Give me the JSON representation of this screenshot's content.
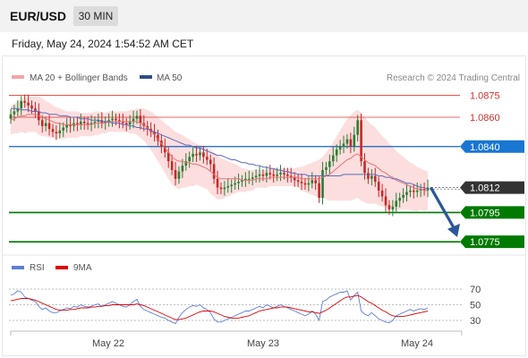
{
  "header": {
    "pair": "EUR/USD",
    "timeframe": "30 MIN",
    "datetime": "Friday, May 24, 2024 1:54:52 AM CET"
  },
  "legend": {
    "bollinger_label": "MA 20 + Bollinger Bands",
    "ma50_label": "MA 50",
    "credit": "Research © 2024 Trading Central",
    "rsi_label": "RSI",
    "rsi_ma_label": "9MA"
  },
  "colors": {
    "up": "#2e7d32",
    "down": "#c62828",
    "band_fill": "#fbd3d3",
    "ma20": "#e57373",
    "ma50": "#5c6bc0",
    "pivot_line": "#1565c0",
    "pivot_tag": "#1976d2",
    "resistance": "#e53935",
    "support": "#007a00",
    "current_tag": "#333333",
    "arrow": "#2b579a",
    "rsi": "#5b7fd6",
    "rsi_ma": "#e00000"
  },
  "chart_data": [
    {
      "type": "candlestick",
      "ylim": [
        1.0769,
        1.0882
      ],
      "x_ticks": [
        "May 22",
        "May 23",
        "May 24"
      ],
      "levels": [
        {
          "price": 1.0875,
          "label": "1.0875",
          "kind": "resistance"
        },
        {
          "price": 1.086,
          "label": "1.0860",
          "kind": "resistance"
        },
        {
          "price": 1.084,
          "label": "1.0840",
          "kind": "pivot"
        },
        {
          "price": 1.0812,
          "label": "1.0812",
          "kind": "current"
        },
        {
          "price": 1.0795,
          "label": "1.0795",
          "kind": "support"
        },
        {
          "price": 1.0775,
          "label": "1.0775",
          "kind": "support"
        }
      ],
      "projection": {
        "from": 1.0812,
        "to": 1.0777
      },
      "closes": [
        1.0862,
        1.0864,
        1.0866,
        1.0871,
        1.087,
        1.0868,
        1.0866,
        1.0864,
        1.0858,
        1.0854,
        1.0856,
        1.0852,
        1.085,
        1.0849,
        1.0851,
        1.0853,
        1.0855,
        1.0854,
        1.0856,
        1.0855,
        1.0857,
        1.0856,
        1.0855,
        1.0856,
        1.0857,
        1.0858,
        1.0856,
        1.0857,
        1.0858,
        1.0859,
        1.0858,
        1.0857,
        1.0856,
        1.0855,
        1.0857,
        1.0859,
        1.0861,
        1.0856,
        1.0854,
        1.0852,
        1.085,
        1.0848,
        1.0844,
        1.084,
        1.0836,
        1.083,
        1.0824,
        1.0818,
        1.0823,
        1.0827,
        1.083,
        1.0833,
        1.0835,
        1.0834,
        1.0836,
        1.0833,
        1.0831,
        1.0828,
        1.0818,
        1.0812,
        1.0811,
        1.0812,
        1.0813,
        1.0814,
        1.0815,
        1.0816,
        1.0817,
        1.0818,
        1.0818,
        1.0819,
        1.082,
        1.0821,
        1.082,
        1.0822,
        1.0821,
        1.082,
        1.0821,
        1.0822,
        1.0821,
        1.082,
        1.0819,
        1.0817,
        1.0816,
        1.0815,
        1.0814,
        1.0815,
        1.0817,
        1.0815,
        1.0805,
        1.0824,
        1.0826,
        1.083,
        1.0834,
        1.0838,
        1.084,
        1.0842,
        1.0845,
        1.084,
        1.0848,
        1.0858,
        1.083,
        1.0822,
        1.0818,
        1.082,
        1.0816,
        1.081,
        1.0806,
        1.08,
        1.0797,
        1.0799,
        1.0803,
        1.0805,
        1.0807,
        1.0809,
        1.081,
        1.0809,
        1.081,
        1.0811,
        1.081,
        1.0812
      ],
      "ma20": [
        1.0858,
        1.0859,
        1.086,
        1.0861,
        1.0861,
        1.0862,
        1.0862,
        1.0862,
        1.0861,
        1.086,
        1.0859,
        1.0858,
        1.0857,
        1.0856,
        1.0856,
        1.0855,
        1.0855,
        1.0855,
        1.0855,
        1.0855,
        1.0855,
        1.0855,
        1.0855,
        1.0855,
        1.0856,
        1.0856,
        1.0856,
        1.0856,
        1.0857,
        1.0857,
        1.0857,
        1.0857,
        1.0857,
        1.0857,
        1.0857,
        1.0857,
        1.0857,
        1.0856,
        1.0855,
        1.0853,
        1.0851,
        1.0848,
        1.0845,
        1.0842,
        1.0839,
        1.0836,
        1.0833,
        1.0831,
        1.083,
        1.083,
        1.0829,
        1.0829,
        1.0828,
        1.0828,
        1.0827,
        1.0826,
        1.0825,
        1.0823,
        1.0821,
        1.0819,
        1.0818,
        1.0818,
        1.0818,
        1.0818,
        1.0818,
        1.0818,
        1.0817,
        1.0817,
        1.0817,
        1.0817,
        1.0818,
        1.0818,
        1.0818,
        1.0818,
        1.0819,
        1.0819,
        1.0819,
        1.0819,
        1.0819,
        1.0819,
        1.0819,
        1.0819,
        1.0819,
        1.0818,
        1.0818,
        1.0818,
        1.0818,
        1.0818,
        1.0818,
        1.0819,
        1.082,
        1.0821,
        1.0823,
        1.0825,
        1.0827,
        1.0829,
        1.0831,
        1.0832,
        1.0834,
        1.0835,
        1.0833,
        1.0831,
        1.0829,
        1.0828,
        1.0827,
        1.0825,
        1.0823,
        1.0822,
        1.082,
        1.0819,
        1.0817,
        1.0816,
        1.0815,
        1.0814,
        1.0813,
        1.0812,
        1.0811,
        1.0811,
        1.081,
        1.081
      ],
      "ma50": [
        1.0866,
        1.0866,
        1.0866,
        1.0865,
        1.0865,
        1.0865,
        1.0864,
        1.0864,
        1.0864,
        1.0863,
        1.0863,
        1.0862,
        1.0862,
        1.0862,
        1.0861,
        1.0861,
        1.0861,
        1.086,
        1.086,
        1.086,
        1.0859,
        1.0859,
        1.0859,
        1.0858,
        1.0858,
        1.0858,
        1.0857,
        1.0857,
        1.0857,
        1.0856,
        1.0856,
        1.0856,
        1.0855,
        1.0855,
        1.0854,
        1.0854,
        1.0853,
        1.0853,
        1.0852,
        1.0852,
        1.0851,
        1.085,
        1.0849,
        1.0848,
        1.0847,
        1.0846,
        1.0845,
        1.0844,
        1.0843,
        1.0842,
        1.0841,
        1.0841,
        1.084,
        1.0839,
        1.0839,
        1.0838,
        1.0837,
        1.0836,
        1.0835,
        1.0834,
        1.0834,
        1.0833,
        1.0832,
        1.0831,
        1.0831,
        1.083,
        1.0829,
        1.0829,
        1.0828,
        1.0828,
        1.0827,
        1.0827,
        1.0826,
        1.0826,
        1.0825,
        1.0825,
        1.0824,
        1.0824,
        1.0823,
        1.0823,
        1.0822,
        1.0822,
        1.0821,
        1.0821,
        1.0821,
        1.082,
        1.082,
        1.082,
        1.082,
        1.082,
        1.082,
        1.082,
        1.082,
        1.082,
        1.082,
        1.0821,
        1.0821,
        1.0821,
        1.0821,
        1.0821,
        1.0821,
        1.0821,
        1.0821,
        1.0821,
        1.0821,
        1.082,
        1.082,
        1.0819,
        1.0819,
        1.0818,
        1.0818,
        1.0817,
        1.0816,
        1.0815,
        1.0815,
        1.0814,
        1.0813,
        1.0812,
        1.0812,
        1.0811
      ],
      "band_width": [
        0.001,
        0.001,
        0.0011,
        0.0011,
        0.0012,
        0.0012,
        0.0012,
        0.0012,
        0.0013,
        0.0013,
        0.0012,
        0.0012,
        0.0011,
        0.0011,
        0.001,
        0.001,
        0.0009,
        0.0009,
        0.0009,
        0.0009,
        0.0008,
        0.0008,
        0.0008,
        0.0008,
        0.0008,
        0.0008,
        0.0007,
        0.0007,
        0.0007,
        0.0007,
        0.0007,
        0.0007,
        0.0007,
        0.0007,
        0.0008,
        0.0008,
        0.0009,
        0.001,
        0.0011,
        0.0012,
        0.0013,
        0.0014,
        0.0015,
        0.0016,
        0.0017,
        0.0018,
        0.0019,
        0.0019,
        0.0019,
        0.0018,
        0.0017,
        0.0016,
        0.0015,
        0.0014,
        0.0014,
        0.0014,
        0.0014,
        0.0015,
        0.0015,
        0.0015,
        0.0014,
        0.0013,
        0.0012,
        0.0011,
        0.001,
        0.0009,
        0.0008,
        0.0008,
        0.0007,
        0.0007,
        0.0006,
        0.0006,
        0.0006,
        0.0006,
        0.0006,
        0.0006,
        0.0006,
        0.0006,
        0.0006,
        0.0006,
        0.0006,
        0.0006,
        0.0007,
        0.0008,
        0.0009,
        0.001,
        0.0011,
        0.0012,
        0.0013,
        0.0014,
        0.0016,
        0.0018,
        0.002,
        0.0022,
        0.0024,
        0.0026,
        0.0028,
        0.0029,
        0.003,
        0.003,
        0.003,
        0.0029,
        0.0028,
        0.0027,
        0.0026,
        0.0025,
        0.0024,
        0.0023,
        0.0022,
        0.0021,
        0.002,
        0.0019,
        0.0018,
        0.0017,
        0.0016,
        0.0016,
        0.0015,
        0.0014,
        0.0014,
        0.0013
      ]
    },
    {
      "type": "line",
      "ylim": [
        22,
        78
      ],
      "y_ticks": [
        70,
        50,
        30
      ],
      "rsi": [
        62,
        64,
        68,
        66,
        60,
        58,
        56,
        54,
        48,
        44,
        46,
        42,
        40,
        40,
        42,
        44,
        46,
        45,
        48,
        47,
        50,
        48,
        47,
        48,
        50,
        51,
        48,
        50,
        52,
        54,
        52,
        50,
        48,
        47,
        50,
        54,
        57,
        48,
        44,
        42,
        40,
        38,
        36,
        34,
        33,
        30,
        28,
        26,
        34,
        40,
        44,
        47,
        49,
        48,
        50,
        46,
        44,
        40,
        32,
        28,
        28,
        30,
        32,
        34,
        36,
        38,
        40,
        42,
        42,
        44,
        46,
        48,
        46,
        50,
        48,
        46,
        48,
        50,
        48,
        46,
        44,
        42,
        40,
        38,
        36,
        38,
        42,
        38,
        30,
        54,
        56,
        60,
        62,
        64,
        66,
        66,
        68,
        56,
        62,
        66,
        42,
        38,
        36,
        40,
        36,
        32,
        30,
        28,
        27,
        30,
        36,
        38,
        40,
        42,
        44,
        42,
        44,
        45,
        44,
        46
      ],
      "rsi_ma": [
        55,
        56,
        57,
        58,
        58,
        58,
        57,
        56,
        54,
        52,
        50,
        48,
        46,
        44,
        43,
        43,
        43,
        44,
        44,
        45,
        46,
        46,
        46,
        47,
        47,
        48,
        48,
        49,
        49,
        50,
        50,
        50,
        50,
        50,
        50,
        50,
        51,
        50,
        49,
        47,
        45,
        43,
        41,
        39,
        37,
        35,
        33,
        31,
        31,
        32,
        33,
        35,
        37,
        39,
        41,
        42,
        42,
        42,
        41,
        39,
        37,
        35,
        34,
        33,
        33,
        33,
        34,
        35,
        36,
        38,
        40,
        42,
        43,
        44,
        45,
        46,
        46,
        47,
        47,
        47,
        46,
        45,
        44,
        43,
        42,
        41,
        41,
        40,
        39,
        41,
        43,
        46,
        49,
        52,
        55,
        58,
        60,
        60,
        61,
        62,
        60,
        57,
        54,
        52,
        49,
        46,
        43,
        41,
        38,
        36,
        35,
        35,
        35,
        36,
        37,
        38,
        39,
        40,
        41,
        42
      ]
    }
  ]
}
